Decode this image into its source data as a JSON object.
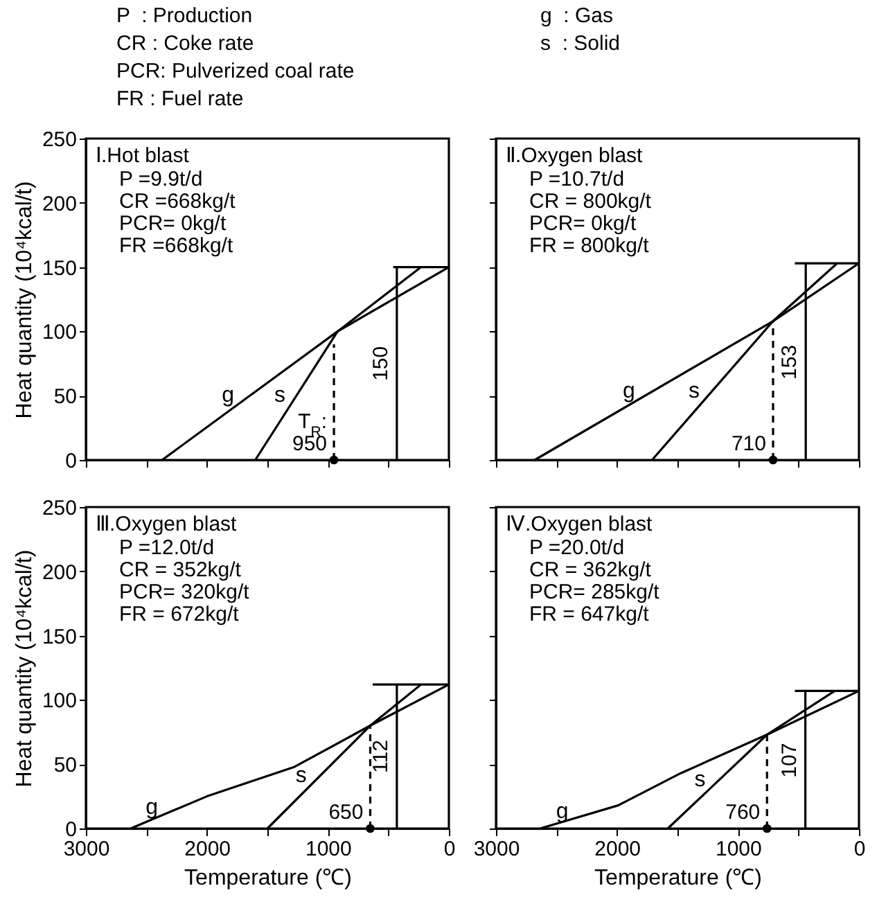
{
  "chart_data": [
    {
      "type": "line",
      "title": "Ⅰ.Hot blast",
      "subtitle": "P =9.9t/d\nCR =668kg/t\nPCR= 0kg/t\nFR =668kg/t",
      "ylabel": "Heat quantity (10⁴kcal/t)",
      "xlim": [
        3000,
        0
      ],
      "xticks": [
        3000,
        {
          "value": 2500,
          "label": null
        },
        2000,
        {
          "value": 1500,
          "label": null
        },
        1000,
        {
          "value": 500,
          "label": null
        },
        0
      ],
      "ylim": [
        0,
        250
      ],
      "yticks": [
        0,
        50,
        100,
        150,
        200,
        250
      ],
      "tick_labels": "y",
      "annotations": [
        "P  : Production",
        "CR : Coke rate",
        "PCR: Pulverized coal rate",
        "FR : Fuel rate",
        "g  : Gas",
        "s  : Solid",
        {
          "text": "150",
          "x": 430,
          "y": 75
        },
        {
          "text": "T$_{R}$:\n950",
          "x": 950,
          "y": 0
        }
      ],
      "series": [
        {
          "name": "g",
          "color": "#000000",
          "x": [
            2370,
            920,
            0
          ],
          "values": [
            0,
            100,
            150
          ]
        },
        {
          "name": "s",
          "color": "#000000",
          "x": [
            1600,
            920,
            230
          ],
          "values": [
            0,
            100,
            150
          ]
        },
        {
          "color": "#000000",
          "line_style": "dashed",
          "x": [
            950,
            950
          ],
          "values": [
            0,
            90
          ]
        },
        {
          "color": "#000000",
          "x": [
            430,
            430
          ],
          "values": [
            0,
            150
          ]
        },
        {
          "color": "#000000",
          "x": [
            460,
            0
          ],
          "values": [
            150,
            150
          ]
        },
        {
          "color": "#000000",
          "type": "scatter",
          "marker": "circle",
          "x": [
            950
          ],
          "values": [
            0
          ]
        }
      ]
    },
    {
      "type": "line",
      "title": "Ⅱ.Oxygen blast",
      "subtitle": "P =10.7t/d\nCR = 800kg/t\nPCR=  0kg/t\nFR = 800kg/t",
      "xlim": [
        3000,
        0
      ],
      "xticks": [
        3000,
        {
          "value": 2500,
          "label": null
        },
        2000,
        {
          "value": 1500,
          "label": null
        },
        1000,
        {
          "value": 500,
          "label": null
        },
        0
      ],
      "ylim": [
        0,
        250
      ],
      "yticks": [
        0,
        50,
        100,
        150,
        200,
        250
      ],
      "tick_labels": false,
      "annotations": [
        {
          "text": "153",
          "x": 440,
          "y": 76
        },
        {
          "text": "710",
          "x": 710,
          "y": 0
        }
      ],
      "series": [
        {
          "name": "g",
          "color": "#000000",
          "x": [
            2680,
            710,
            0
          ],
          "values": [
            0,
            108,
            153
          ]
        },
        {
          "name": "s",
          "color": "#000000",
          "x": [
            1710,
            710,
            180
          ],
          "values": [
            0,
            108,
            153
          ]
        },
        {
          "color": "#000000",
          "line_style": "dashed",
          "x": [
            710,
            710
          ],
          "values": [
            0,
            108
          ]
        },
        {
          "color": "#000000",
          "x": [
            440,
            440
          ],
          "values": [
            0,
            153
          ]
        },
        {
          "color": "#000000",
          "x": [
            530,
            0
          ],
          "values": [
            153,
            153
          ]
        },
        {
          "color": "#000000",
          "type": "scatter",
          "marker": "circle",
          "x": [
            710
          ],
          "values": [
            0
          ]
        }
      ]
    },
    {
      "type": "line",
      "title": "Ⅲ.Oxygen blast",
      "subtitle": "P =12.0t/d\nCR = 352kg/t\nPCR= 320kg/t\nFR = 672kg/t",
      "xlabel": "Temperature (℃)",
      "ylabel": "Heat quantity (10⁴kcal/t)",
      "xlim": [
        3000,
        0
      ],
      "xticks": [
        3000,
        {
          "value": 2500,
          "label": null
        },
        2000,
        {
          "value": 1500,
          "label": null
        },
        1000,
        {
          "value": 500,
          "label": null
        },
        0
      ],
      "ylim": [
        0,
        250
      ],
      "yticks": [
        0,
        50,
        100,
        150,
        200,
        250
      ],
      "annotations": [
        {
          "text": "112",
          "x": 430,
          "y": 56
        },
        {
          "text": "650",
          "x": 650,
          "y": 0
        }
      ],
      "series": [
        {
          "name": "g",
          "color": "#000000",
          "x": [
            2630,
            2000,
            1275,
            650,
            0
          ],
          "values": [
            0,
            25,
            48,
            80,
            112
          ]
        },
        {
          "name": "s",
          "color": "#000000",
          "x": [
            1500,
            650,
            230
          ],
          "values": [
            0,
            80,
            112
          ]
        },
        {
          "color": "#000000",
          "line_style": "dashed",
          "x": [
            650,
            650
          ],
          "values": [
            0,
            80
          ]
        },
        {
          "color": "#000000",
          "x": [
            430,
            430
          ],
          "values": [
            0,
            112
          ]
        },
        {
          "color": "#000000",
          "x": [
            630,
            0
          ],
          "values": [
            112,
            112
          ]
        },
        {
          "color": "#000000",
          "type": "scatter",
          "marker": "circle",
          "x": [
            650
          ],
          "values": [
            0
          ]
        }
      ]
    },
    {
      "type": "line",
      "title": "Ⅳ.Oxygen blast",
      "subtitle": "P =20.0t/d\nCR = 362kg/t\nPCR= 285kg/t\nFR = 647kg/t",
      "xlabel": "Temperature (℃)",
      "xlim": [
        3000,
        0
      ],
      "xticks": [
        3000,
        {
          "value": 2500,
          "label": null
        },
        2000,
        {
          "value": 1500,
          "label": null
        },
        1000,
        {
          "value": 500,
          "label": null
        },
        0
      ],
      "ylim": [
        0,
        250
      ],
      "yticks": [
        0,
        50,
        100,
        150,
        200,
        250
      ],
      "tick_labels": "x",
      "annotations": [
        {
          "text": "107",
          "x": 443,
          "y": 53
        },
        {
          "text": "760",
          "x": 760,
          "y": 0
        }
      ],
      "series": [
        {
          "name": "g",
          "color": "#000000",
          "x": [
            2635,
            1990,
            1473,
            760,
            0
          ],
          "values": [
            0,
            18,
            43,
            73,
            107
          ]
        },
        {
          "name": "s",
          "color": "#000000",
          "x": [
            1580,
            760,
            200
          ],
          "values": [
            0,
            73,
            107
          ]
        },
        {
          "color": "#000000",
          "line_style": "dashed",
          "x": [
            760,
            760
          ],
          "values": [
            0,
            73
          ]
        },
        {
          "color": "#000000",
          "x": [
            443,
            443
          ],
          "values": [
            0,
            107
          ]
        },
        {
          "color": "#000000",
          "x": [
            530,
            0
          ],
          "values": [
            107,
            107
          ]
        },
        {
          "color": "#000000",
          "type": "scatter",
          "marker": "circle",
          "x": [
            760
          ],
          "values": [
            0
          ]
        }
      ]
    }
  ]
}
